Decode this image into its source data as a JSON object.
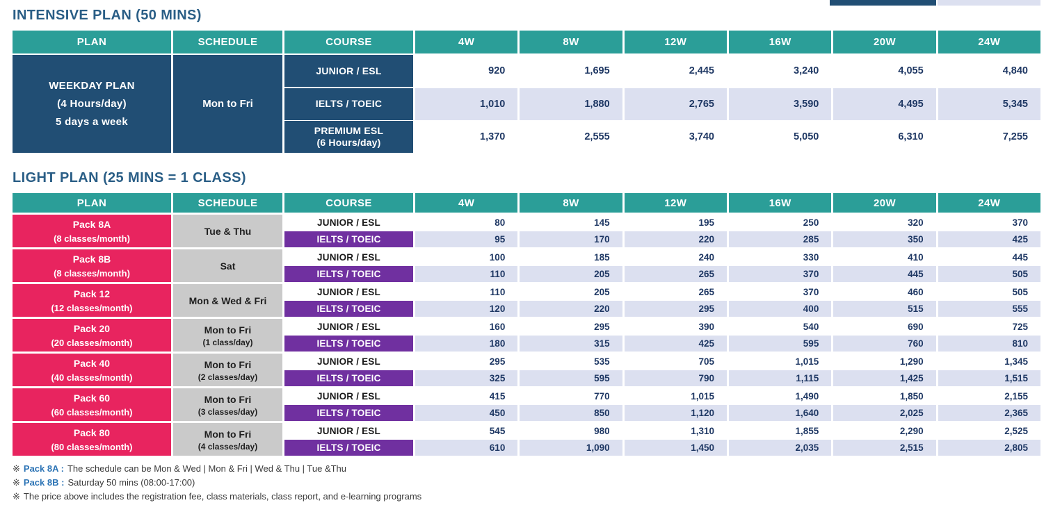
{
  "colors": {
    "teal_header": "#2b9e98",
    "navy_cell": "#214e74",
    "pink_cell": "#e8245f",
    "purple_cell": "#7030a0",
    "lavender_row": "#dce0f0",
    "gray_cell": "#cacaca",
    "price_text": "#1f3864",
    "title_text": "#2a5e86",
    "footnote_blue": "#2e75b6"
  },
  "intensive": {
    "title": "INTENSIVE PLAN (50 MINS)",
    "columns": [
      "PLAN",
      "SCHEDULE",
      "COURSE",
      "4W",
      "8W",
      "12W",
      "16W",
      "20W",
      "24W"
    ],
    "plan": {
      "lines": [
        "WEEKDAY PLAN",
        "(4 Hours/day)",
        "5 days a week"
      ]
    },
    "schedule": "Mon to Fri",
    "rows": [
      {
        "course_lines": [
          "JUNIOR / ESL"
        ],
        "shaded": false,
        "prices": [
          "920",
          "1,695",
          "2,445",
          "3,240",
          "4,055",
          "4,840"
        ]
      },
      {
        "course_lines": [
          "IELTS / TOEIC"
        ],
        "shaded": true,
        "prices": [
          "1,010",
          "1,880",
          "2,765",
          "3,590",
          "4,495",
          "5,345"
        ]
      },
      {
        "course_lines": [
          "PREMIUM ESL",
          "(6 Hours/day)"
        ],
        "shaded": false,
        "prices": [
          "1,370",
          "2,555",
          "3,740",
          "5,050",
          "6,310",
          "7,255"
        ]
      }
    ]
  },
  "light": {
    "title": "LIGHT PLAN (25 MINS = 1 CLASS)",
    "columns": [
      "PLAN",
      "SCHEDULE",
      "COURSE",
      "4W",
      "8W",
      "12W",
      "16W",
      "20W",
      "24W"
    ],
    "groups": [
      {
        "plan_lines": [
          "Pack 8A",
          "(8 classes/month)"
        ],
        "schedule_lines": [
          "Tue & Thu"
        ],
        "junior": {
          "label": "JUNIOR / ESL",
          "prices": [
            "80",
            "145",
            "195",
            "250",
            "320",
            "370"
          ]
        },
        "ielts": {
          "label": "IELTS / TOEIC",
          "prices": [
            "95",
            "170",
            "220",
            "285",
            "350",
            "425"
          ]
        }
      },
      {
        "plan_lines": [
          "Pack 8B",
          "(8 classes/month)"
        ],
        "schedule_lines": [
          "Sat"
        ],
        "junior": {
          "label": "JUNIOR / ESL",
          "prices": [
            "100",
            "185",
            "240",
            "330",
            "410",
            "445"
          ]
        },
        "ielts": {
          "label": "IELTS / TOEIC",
          "prices": [
            "110",
            "205",
            "265",
            "370",
            "445",
            "505"
          ]
        }
      },
      {
        "plan_lines": [
          "Pack 12",
          "(12 classes/month)"
        ],
        "schedule_lines": [
          "Mon & Wed & Fri"
        ],
        "junior": {
          "label": "JUNIOR / ESL",
          "prices": [
            "110",
            "205",
            "265",
            "370",
            "460",
            "505"
          ]
        },
        "ielts": {
          "label": "IELTS / TOEIC",
          "prices": [
            "120",
            "220",
            "295",
            "400",
            "515",
            "555"
          ]
        }
      },
      {
        "plan_lines": [
          "Pack 20",
          "(20 classes/month)"
        ],
        "schedule_lines": [
          "Mon to Fri",
          "(1 class/day)"
        ],
        "junior": {
          "label": "JUNIOR / ESL",
          "prices": [
            "160",
            "295",
            "390",
            "540",
            "690",
            "725"
          ]
        },
        "ielts": {
          "label": "IELTS / TOEIC",
          "prices": [
            "180",
            "315",
            "425",
            "595",
            "760",
            "810"
          ]
        }
      },
      {
        "plan_lines": [
          "Pack 40",
          "(40 classes/month)"
        ],
        "schedule_lines": [
          "Mon to Fri",
          "(2 classes/day)"
        ],
        "junior": {
          "label": "JUNIOR / ESL",
          "prices": [
            "295",
            "535",
            "705",
            "1,015",
            "1,290",
            "1,345"
          ]
        },
        "ielts": {
          "label": "IELTS / TOEIC",
          "prices": [
            "325",
            "595",
            "790",
            "1,115",
            "1,425",
            "1,515"
          ]
        }
      },
      {
        "plan_lines": [
          "Pack 60",
          "(60 classes/month)"
        ],
        "schedule_lines": [
          "Mon to Fri",
          "(3 classes/day)"
        ],
        "junior": {
          "label": "JUNIOR / ESL",
          "prices": [
            "415",
            "770",
            "1,015",
            "1,490",
            "1,850",
            "2,155"
          ]
        },
        "ielts": {
          "label": "IELTS / TOEIC",
          "prices": [
            "450",
            "850",
            "1,120",
            "1,640",
            "2,025",
            "2,365"
          ]
        }
      },
      {
        "plan_lines": [
          "Pack 80",
          "(80 classes/month)"
        ],
        "schedule_lines": [
          "Mon to Fri",
          "(4 classes/day)"
        ],
        "junior": {
          "label": "JUNIOR / ESL",
          "prices": [
            "545",
            "980",
            "1,310",
            "1,855",
            "2,290",
            "2,525"
          ]
        },
        "ielts": {
          "label": "IELTS / TOEIC",
          "prices": [
            "610",
            "1,090",
            "1,450",
            "2,035",
            "2,515",
            "2,805"
          ]
        }
      }
    ]
  },
  "footnotes": [
    {
      "marker": "※",
      "highlight": "Pack 8A :",
      "text": "The schedule can be Mon & Wed | Mon & Fri | Wed & Thu | Tue &Thu"
    },
    {
      "marker": "※",
      "highlight": "Pack 8B :",
      "text": "Saturday 50 mins (08:00-17:00)"
    },
    {
      "marker": "※",
      "highlight": "",
      "text": "The price above includes the registration fee, class materials, class report, and e-learning programs"
    }
  ]
}
